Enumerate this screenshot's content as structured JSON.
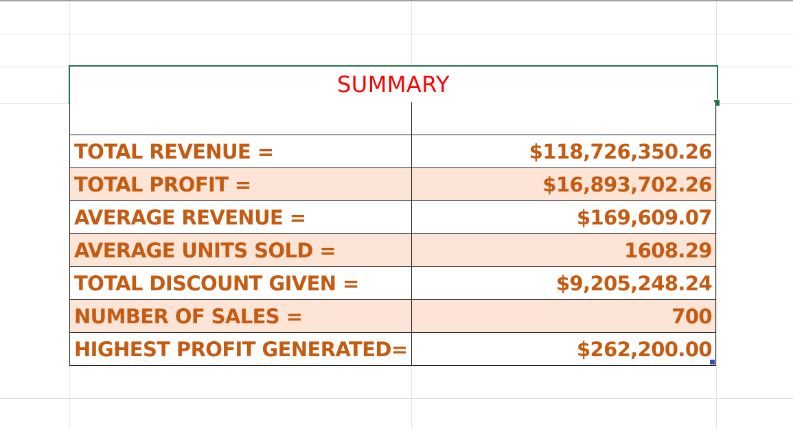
{
  "summary": {
    "title": "SUMMARY",
    "rows": [
      {
        "label": "",
        "value": ""
      },
      {
        "label": "TOTAL REVENUE =",
        "value": "$118,726,350.26"
      },
      {
        "label": "TOTAL PROFIT =",
        "value": "$16,893,702.26"
      },
      {
        "label": "AVERAGE REVENUE =",
        "value": "$169,609.07"
      },
      {
        "label": "AVERAGE UNITS SOLD =",
        "value": "1608.29"
      },
      {
        "label": "TOTAL DISCOUNT GIVEN =",
        "value": "$9,205,248.24"
      },
      {
        "label": "NUMBER OF SALES =",
        "value": "700"
      },
      {
        "label": "HIGHEST PROFIT GENERATED=",
        "value": "$262,200.00"
      }
    ]
  },
  "colors": {
    "title_text": "#ff0000",
    "cell_text": "#c55a11",
    "row_shade": "#fce4d6",
    "selection_border": "#217346"
  }
}
